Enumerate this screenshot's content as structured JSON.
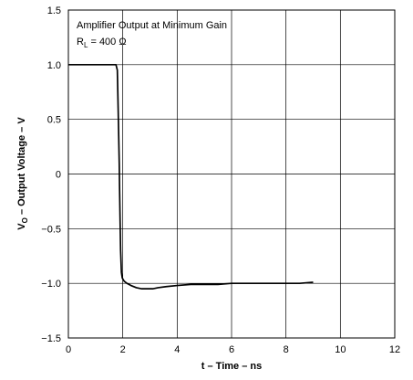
{
  "chart_data": {
    "type": "line",
    "xlabel": "t – Time – ns",
    "ylabel_main": "V",
    "ylabel_sub": "O",
    "ylabel_rest": " – Output Voltage – V",
    "xlim": [
      0,
      12
    ],
    "ylim": [
      -1.5,
      1.5
    ],
    "xticks": [
      0,
      2,
      4,
      6,
      8,
      10,
      12
    ],
    "xtick_labels": [
      "0",
      "2",
      "4",
      "6",
      "8",
      "10",
      "12"
    ],
    "yticks": [
      1.5,
      1.0,
      0.5,
      0,
      -0.5,
      -1.0,
      -1.5
    ],
    "ytick_labels": [
      "1.5",
      "1.0",
      "0.5",
      "0",
      "−0.5",
      "−1.0",
      "−1.5"
    ],
    "grid": true,
    "annotation": {
      "line1": "Amplifier Output at Minimum Gain",
      "line2_main": "R",
      "line2_sub": "L",
      "line2_rest": " = 400 Ω"
    },
    "series": [
      {
        "x": [
          0.0,
          0.3,
          1.0,
          1.5,
          1.75,
          1.8,
          1.83,
          1.85,
          1.87,
          1.88,
          1.9,
          1.92,
          1.95,
          1.98,
          2.0,
          2.05,
          2.15,
          2.3,
          2.5,
          2.7,
          2.9,
          3.1,
          3.3,
          3.6,
          4.0,
          4.5,
          5.0,
          5.5,
          6.0,
          6.5,
          7.0,
          7.5,
          8.0,
          8.5,
          9.0
        ],
        "y": [
          1.0,
          1.0,
          1.0,
          1.0,
          1.0,
          0.95,
          0.6,
          0.35,
          0.1,
          -0.1,
          -0.4,
          -0.7,
          -0.9,
          -0.95,
          -0.96,
          -0.98,
          -1.0,
          -1.02,
          -1.04,
          -1.05,
          -1.05,
          -1.05,
          -1.04,
          -1.03,
          -1.02,
          -1.01,
          -1.01,
          -1.01,
          -1.0,
          -1.0,
          -1.0,
          -1.0,
          -1.0,
          -1.0,
          -0.99
        ]
      }
    ]
  }
}
